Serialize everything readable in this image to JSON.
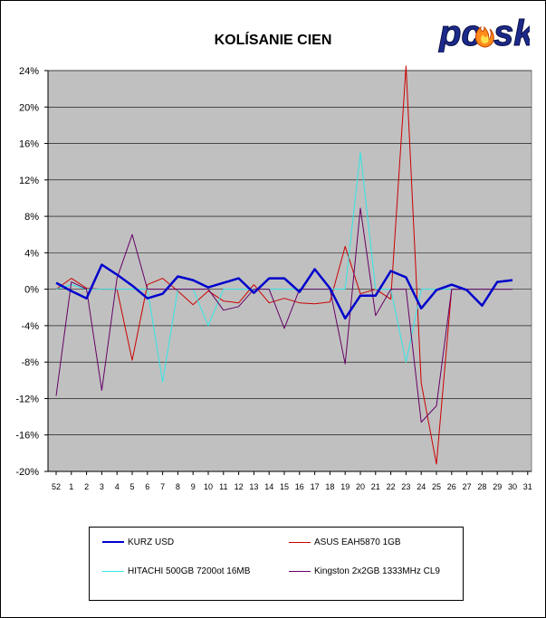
{
  "brand": {
    "logo_text": "pcsk"
  },
  "chart_data": {
    "type": "line",
    "title": "KOLÍSANIE CIEN",
    "xlabel": "",
    "ylabel": "",
    "categories": [
      "52",
      "1",
      "2",
      "3",
      "4",
      "5",
      "6",
      "7",
      "8",
      "9",
      "10",
      "11",
      "12",
      "13",
      "14",
      "15",
      "16",
      "17",
      "18",
      "19",
      "20",
      "21",
      "22",
      "23",
      "24",
      "25",
      "26",
      "27",
      "28",
      "29",
      "30",
      "31"
    ],
    "y_ticks": [
      "24%",
      "20%",
      "16%",
      "12%",
      "8%",
      "4%",
      "0%",
      "-4%",
      "-8%",
      "-12%",
      "-16%",
      "-20%"
    ],
    "ylim": [
      -20,
      24
    ],
    "grid": true,
    "legend_position": "bottom",
    "series": [
      {
        "name": "KURZ USD",
        "color": "#0000cc",
        "width": 2.5,
        "values": [
          0.7,
          -0.2,
          -1.0,
          2.7,
          1.6,
          0.4,
          -1.0,
          -0.5,
          1.4,
          1.0,
          0.2,
          0.7,
          1.2,
          -0.4,
          1.2,
          1.2,
          -0.3,
          2.2,
          0.1,
          -3.2,
          -0.7,
          -0.7,
          2.0,
          1.3,
          -2.1,
          -0.1,
          0.5,
          -0.1,
          -1.8,
          0.8,
          1.0,
          null
        ]
      },
      {
        "name": "ASUS EAH5870 1GB",
        "color": "#cc0000",
        "width": 1,
        "values": [
          0.0,
          1.2,
          0.1,
          0.0,
          0.0,
          -7.8,
          0.5,
          1.2,
          -0.2,
          -1.7,
          -0.2,
          -1.3,
          -1.5,
          0.5,
          -1.5,
          -1.0,
          -1.5,
          -1.6,
          -1.4,
          4.7,
          -0.5,
          0.0,
          -1.1,
          24.5,
          -10.3,
          -19.2,
          0.0,
          0.0,
          0.0,
          0.0,
          0.0,
          null
        ]
      },
      {
        "name": "HITACHI 500GB 7200ot 16MB",
        "color": "#33e6e6",
        "width": 1,
        "values": [
          0.0,
          0.5,
          0.0,
          0.0,
          0.0,
          0.0,
          0.0,
          -10.2,
          0.0,
          0.0,
          -4.0,
          0.0,
          0.0,
          0.0,
          0.0,
          0.0,
          0.0,
          0.0,
          0.0,
          0.0,
          15.0,
          0.0,
          0.0,
          -8.0,
          0.0,
          0.0,
          0.0,
          0.0,
          0.0,
          0.0,
          0.0,
          null
        ]
      },
      {
        "name": "Kingston 2x2GB 1333MHz CL9",
        "color": "#660066",
        "width": 1,
        "values": [
          -11.7,
          0.8,
          0.0,
          -11.1,
          1.2,
          6.0,
          0.0,
          0.0,
          0.0,
          0.0,
          0.0,
          -2.3,
          -1.9,
          0.0,
          0.0,
          -4.3,
          0.0,
          0.0,
          0.0,
          -8.2,
          8.9,
          -2.9,
          0.0,
          0.0,
          -14.6,
          -12.8,
          0.0,
          0.0,
          0.0,
          0.0,
          0.0,
          null
        ]
      }
    ]
  }
}
